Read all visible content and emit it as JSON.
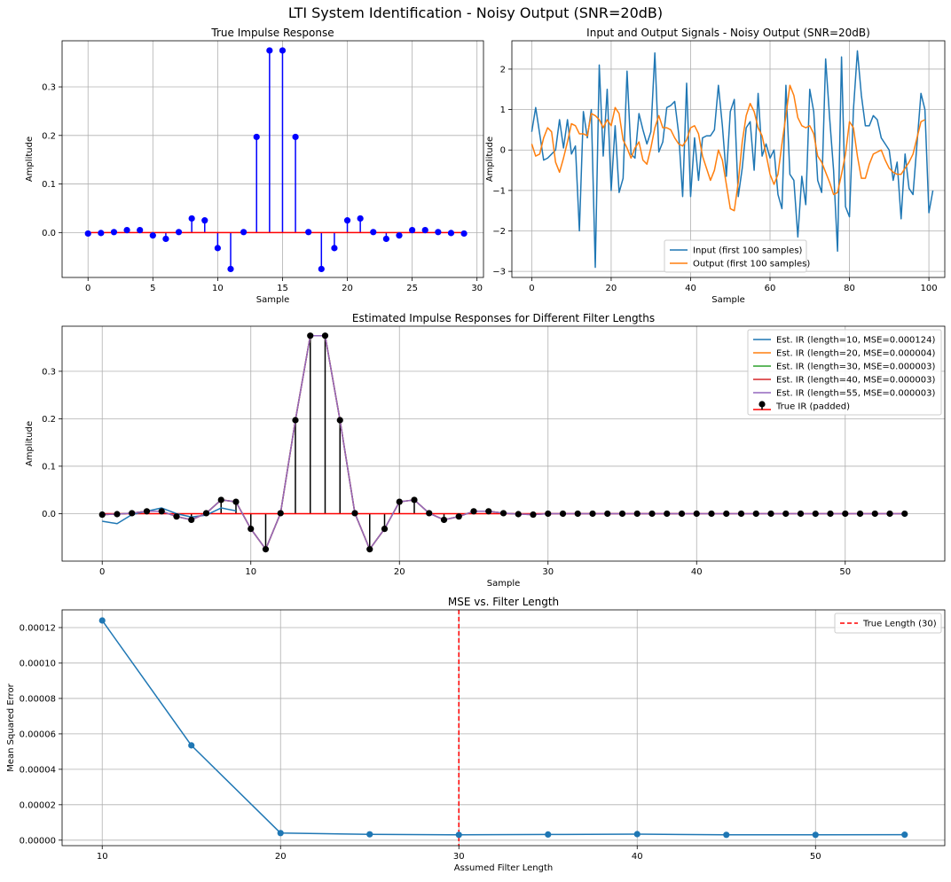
{
  "suptitle": "LTI System Identification - Noisy Output (SNR=20dB)",
  "colors": {
    "blue": "#1f77b4",
    "orange": "#ff7f0e",
    "green": "#2ca02c",
    "red": "#d62728",
    "purple": "#9467bd",
    "stem_blue": "#0000ff",
    "baseline_red": "#ff0000",
    "grid": "#b0b0b0"
  },
  "chart_data": [
    {
      "id": "true_ir",
      "type": "stem",
      "title": "True Impulse Response",
      "xlabel": "Sample",
      "ylabel": "Amplitude",
      "xlim": [
        -2,
        30.5
      ],
      "ylim": [
        -0.0925,
        0.395
      ],
      "xticks": [
        0,
        5,
        10,
        15,
        20,
        25,
        30
      ],
      "yticks": [
        0.0,
        0.1,
        0.2,
        0.3
      ],
      "ytick_labels": [
        "0.0",
        "0.1",
        "0.2",
        "0.3"
      ],
      "grid": true,
      "x": [
        0,
        1,
        2,
        3,
        4,
        5,
        6,
        7,
        8,
        9,
        10,
        11,
        12,
        13,
        14,
        15,
        16,
        17,
        18,
        19,
        20,
        21,
        22,
        23,
        24,
        25,
        26,
        27,
        28,
        29
      ],
      "values": [
        -0.002,
        -0.001,
        0.001,
        0.005,
        0.005,
        -0.006,
        -0.013,
        0.001,
        0.029,
        0.025,
        -0.032,
        -0.075,
        0.001,
        0.197,
        0.375,
        0.375,
        0.197,
        0.001,
        -0.075,
        -0.032,
        0.025,
        0.029,
        0.001,
        -0.013,
        -0.006,
        0.005,
        0.005,
        0.001,
        -0.001,
        -0.002
      ]
    },
    {
      "id": "signals",
      "type": "line",
      "title": "Input and Output Signals - Noisy Output (SNR=20dB)",
      "xlabel": "Sample",
      "ylabel": "Amplitude",
      "xlim": [
        -5,
        104
      ],
      "ylim": [
        -3.15,
        2.7
      ],
      "xticks": [
        0,
        20,
        40,
        60,
        80,
        100
      ],
      "yticks": [
        -3,
        -2,
        -1,
        0,
        1,
        2
      ],
      "ytick_labels": [
        "−3",
        "−2",
        "−1",
        "0",
        "1",
        "2"
      ],
      "grid": true,
      "legend": "lower center",
      "series": [
        {
          "name": "Input (first 100 samples)",
          "color": "#1f77b4",
          "values": [
            0.45,
            1.05,
            0.4,
            -0.25,
            -0.2,
            -0.1,
            0.0,
            0.75,
            0.05,
            0.75,
            -0.1,
            0.1,
            -2.0,
            0.95,
            0.3,
            1.0,
            -2.9,
            2.1,
            -0.15,
            1.5,
            -1.0,
            0.6,
            -1.05,
            -0.7,
            1.95,
            -0.1,
            -0.2,
            0.9,
            0.5,
            0.15,
            0.45,
            2.4,
            -0.05,
            0.2,
            1.05,
            1.1,
            1.2,
            0.4,
            -1.15,
            1.65,
            -1.15,
            0.3,
            -0.75,
            0.3,
            0.35,
            0.35,
            0.5,
            1.6,
            0.6,
            -0.65,
            0.95,
            1.25,
            -1.15,
            -0.45,
            0.55,
            0.7,
            -0.5,
            1.4,
            -0.15,
            0.15,
            -0.2,
            0.0,
            -1.1,
            -1.45,
            1.6,
            -0.6,
            -0.75,
            -2.15,
            -0.65,
            -1.35,
            1.5,
            0.95,
            -0.75,
            -1.05,
            2.25,
            0.8,
            -0.5,
            -2.5,
            2.3,
            -1.4,
            -1.65,
            1.0,
            2.45,
            1.35,
            0.6,
            0.6,
            0.85,
            0.75,
            0.3,
            0.15,
            0.0,
            -0.75,
            -0.3,
            -1.7,
            -0.1,
            -0.95,
            -1.1,
            0.15,
            1.4,
            1.0,
            -1.55,
            -1.0
          ]
        },
        {
          "name": "Output (first 100 samples)",
          "color": "#ff7f0e",
          "values": [
            0.15,
            -0.15,
            -0.1,
            0.3,
            0.55,
            0.45,
            -0.3,
            -0.55,
            -0.2,
            0.2,
            0.65,
            0.6,
            0.4,
            0.4,
            0.35,
            0.9,
            0.85,
            0.75,
            0.55,
            0.75,
            0.6,
            1.05,
            0.9,
            0.25,
            0.05,
            -0.2,
            0.05,
            0.2,
            -0.25,
            -0.35,
            0.05,
            0.55,
            0.85,
            0.55,
            0.55,
            0.5,
            0.3,
            0.15,
            0.1,
            0.25,
            0.55,
            0.6,
            0.4,
            -0.15,
            -0.45,
            -0.75,
            -0.5,
            0.0,
            -0.25,
            -0.85,
            -1.45,
            -1.5,
            -0.8,
            0.2,
            0.85,
            1.15,
            0.95,
            0.55,
            0.35,
            -0.1,
            -0.6,
            -0.85,
            -0.6,
            0.15,
            0.85,
            1.6,
            1.35,
            0.8,
            0.6,
            0.55,
            0.6,
            0.4,
            -0.15,
            -0.3,
            -0.55,
            -0.8,
            -1.1,
            -1.05,
            -0.6,
            -0.1,
            0.7,
            0.55,
            -0.15,
            -0.7,
            -0.7,
            -0.35,
            -0.1,
            -0.05,
            0.0,
            -0.25,
            -0.45,
            -0.55,
            -0.6,
            -0.6,
            -0.45,
            -0.3,
            -0.1,
            0.3,
            0.7,
            0.75
          ]
        }
      ]
    },
    {
      "id": "estimated",
      "type": "line",
      "title": "Estimated Impulse Responses for Different Filter Lengths",
      "xlabel": "Sample",
      "ylabel": "Amplitude",
      "xlim": [
        -2.7,
        56.7
      ],
      "ylim": [
        -0.1,
        0.395
      ],
      "xticks": [
        0,
        10,
        20,
        30,
        40,
        50
      ],
      "yticks": [
        0.0,
        0.1,
        0.2,
        0.3
      ],
      "ytick_labels": [
        "0.0",
        "0.1",
        "0.2",
        "0.3"
      ],
      "grid": true,
      "legend": "upper right",
      "series": [
        {
          "name": "Est. IR (length=10, MSE=0.000124)",
          "color": "#1f77b4",
          "values": [
            -0.016,
            -0.021,
            -0.002,
            0.005,
            0.012,
            0.0,
            -0.007,
            -0.003,
            0.012,
            0.006
          ]
        },
        {
          "name": "Est. IR (length=20, MSE=0.000004)",
          "color": "#ff7f0e",
          "values": [
            -0.002,
            -0.001,
            0.001,
            0.005,
            0.005,
            -0.006,
            -0.013,
            0.001,
            0.029,
            0.025,
            -0.032,
            -0.075,
            0.001,
            0.197,
            0.375,
            0.375,
            0.197,
            0.001,
            -0.075,
            -0.032
          ]
        },
        {
          "name": "Est. IR (length=30, MSE=0.000003)",
          "color": "#2ca02c",
          "values": [
            -0.002,
            -0.001,
            0.001,
            0.005,
            0.005,
            -0.006,
            -0.013,
            0.001,
            0.029,
            0.025,
            -0.032,
            -0.075,
            0.001,
            0.197,
            0.375,
            0.375,
            0.197,
            0.001,
            -0.075,
            -0.032,
            0.025,
            0.029,
            0.001,
            -0.013,
            -0.006,
            0.005,
            0.005,
            0.001,
            -0.001,
            -0.002
          ]
        },
        {
          "name": "Est. IR (length=40, MSE=0.000003)",
          "color": "#d62728",
          "values": [
            -0.002,
            -0.001,
            0.001,
            0.005,
            0.005,
            -0.006,
            -0.013,
            0.001,
            0.029,
            0.025,
            -0.032,
            -0.075,
            0.001,
            0.197,
            0.375,
            0.375,
            0.197,
            0.001,
            -0.075,
            -0.032,
            0.025,
            0.029,
            0.001,
            -0.013,
            -0.006,
            0.005,
            0.005,
            0.001,
            -0.001,
            -0.002,
            0.0,
            0.0,
            0.0,
            0.0,
            0.0,
            0.0,
            0.0,
            0.0,
            0.0,
            0.0
          ]
        },
        {
          "name": "Est. IR (length=55, MSE=0.000003)",
          "color": "#9467bd",
          "values": [
            -0.002,
            -0.001,
            0.001,
            0.005,
            0.005,
            -0.006,
            -0.013,
            0.001,
            0.029,
            0.025,
            -0.032,
            -0.075,
            0.001,
            0.197,
            0.375,
            0.375,
            0.197,
            0.001,
            -0.075,
            -0.032,
            0.025,
            0.029,
            0.001,
            -0.013,
            -0.006,
            0.005,
            0.005,
            0.001,
            -0.001,
            -0.002,
            0.0,
            0.0,
            0.0,
            0.0,
            0.0,
            0.0,
            0.0,
            0.0,
            0.0,
            0.0,
            0.0,
            0.0,
            0.0,
            0.0,
            0.0,
            0.0,
            0.0,
            0.0,
            0.0,
            0.0,
            0.0,
            0.0,
            0.0,
            0.0,
            0.0
          ]
        }
      ],
      "stem_series": {
        "name": "True IR (padded)",
        "values": [
          -0.002,
          -0.001,
          0.001,
          0.005,
          0.005,
          -0.006,
          -0.013,
          0.001,
          0.029,
          0.025,
          -0.032,
          -0.075,
          0.001,
          0.197,
          0.375,
          0.375,
          0.197,
          0.001,
          -0.075,
          -0.032,
          0.025,
          0.029,
          0.001,
          -0.013,
          -0.006,
          0.005,
          0.005,
          0.001,
          -0.001,
          -0.002,
          0,
          0,
          0,
          0,
          0,
          0,
          0,
          0,
          0,
          0,
          0,
          0,
          0,
          0,
          0,
          0,
          0,
          0,
          0,
          0,
          0,
          0,
          0,
          0,
          0
        ]
      }
    },
    {
      "id": "mse",
      "type": "line",
      "title": "MSE vs. Filter Length",
      "xlabel": "Assumed Filter Length",
      "ylabel": "Mean Squared Error",
      "xlim": [
        7.75,
        57.25
      ],
      "ylim": [
        -3.1e-06,
        0.00013
      ],
      "xticks": [
        10,
        20,
        30,
        40,
        50
      ],
      "yticks": [
        0.0,
        2e-05,
        4e-05,
        6e-05,
        8e-05,
        0.0001,
        0.00012
      ],
      "ytick_labels": [
        "0.00000",
        "0.00002",
        "0.00004",
        "0.00006",
        "0.00008",
        "0.00010",
        "0.00012"
      ],
      "grid": true,
      "legend": "upper right",
      "x": [
        10,
        15,
        20,
        25,
        30,
        35,
        40,
        45,
        50,
        55
      ],
      "values": [
        0.000124,
        5.35e-05,
        4e-06,
        3.3e-06,
        3e-06,
        3.2e-06,
        3.4e-06,
        3e-06,
        3e-06,
        3.1e-06
      ],
      "vline": {
        "x": 30,
        "name": "True Length (30)",
        "color": "#ff0000"
      }
    }
  ]
}
